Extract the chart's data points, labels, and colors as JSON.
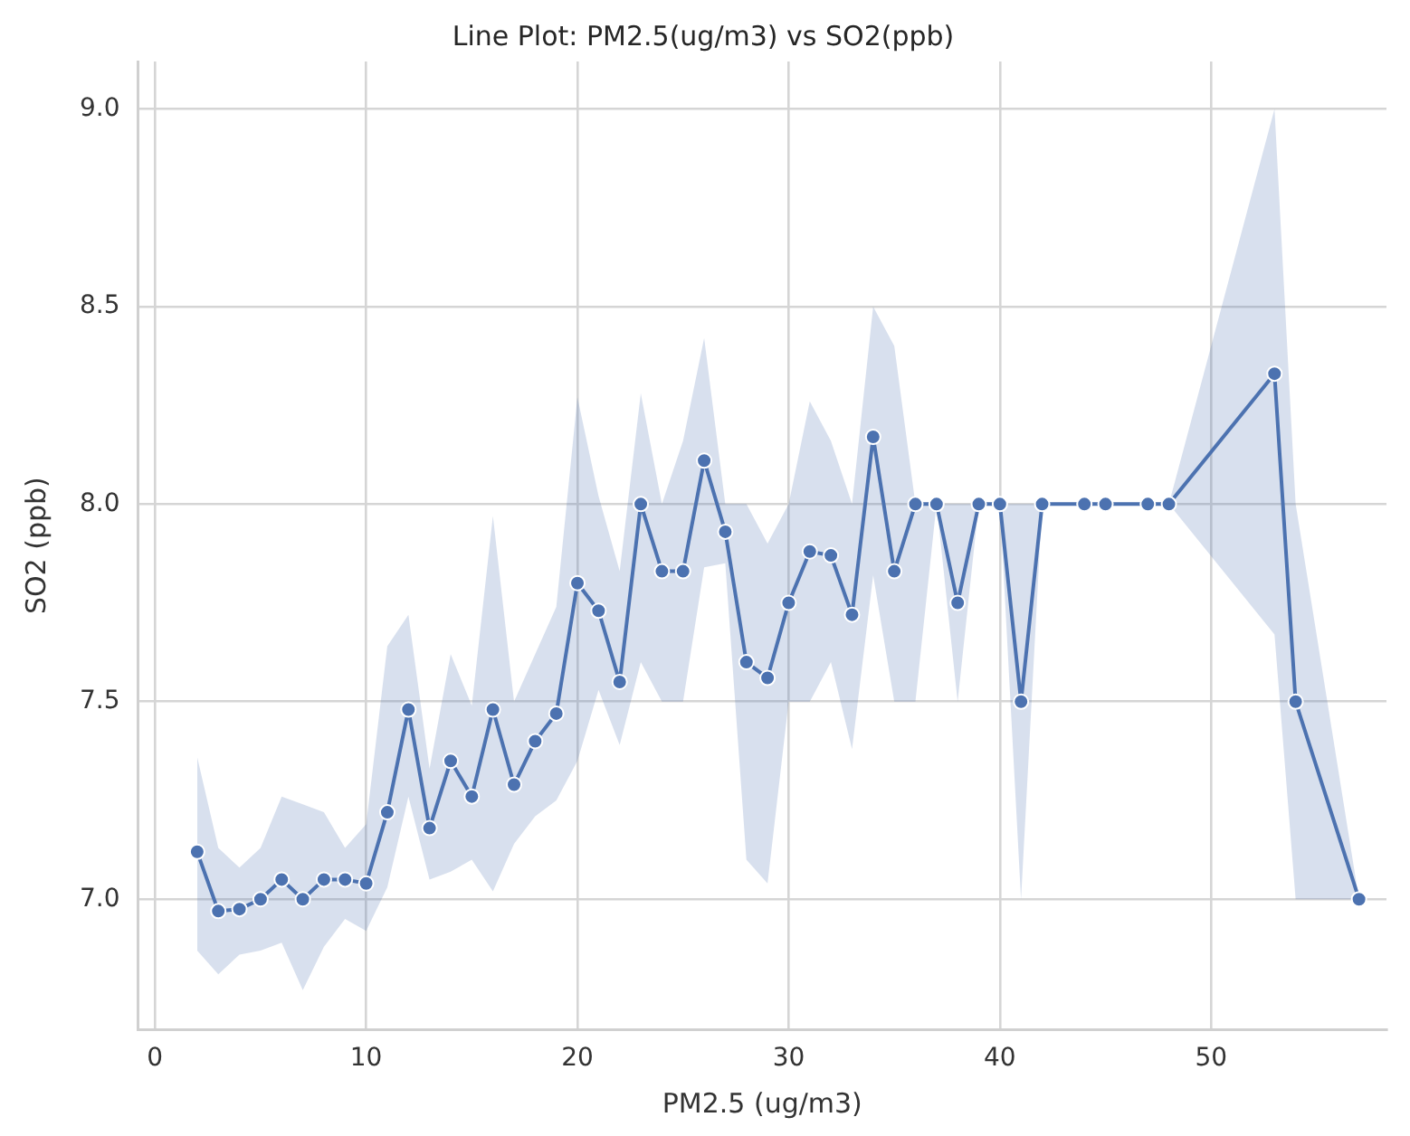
{
  "chart_data": {
    "type": "line",
    "title": "Line Plot: PM2.5(ug/m3) vs SO2(ppb)",
    "xlabel": "PM2.5 (ug/m3)",
    "ylabel": "SO2 (ppb)",
    "x": [
      2,
      3,
      4,
      5,
      6,
      7,
      8,
      9,
      10,
      11,
      12,
      13,
      14,
      15,
      16,
      17,
      18,
      19,
      20,
      21,
      22,
      23,
      24,
      25,
      26,
      27,
      28,
      29,
      30,
      31,
      32,
      33,
      34,
      35,
      36,
      37,
      38,
      39,
      40,
      41,
      42,
      44,
      45,
      47,
      48,
      53,
      54,
      57
    ],
    "series": [
      {
        "color": "#4c72b0",
        "values": [
          7.12,
          6.97,
          6.975,
          7.0,
          7.05,
          7.0,
          7.05,
          7.05,
          7.04,
          7.22,
          7.48,
          7.18,
          7.35,
          7.26,
          7.48,
          7.29,
          7.4,
          7.47,
          7.8,
          7.73,
          7.55,
          8.0,
          7.83,
          7.83,
          8.11,
          7.93,
          7.6,
          7.56,
          7.75,
          7.88,
          7.87,
          7.72,
          8.17,
          7.83,
          8.0,
          8.0,
          7.75,
          8.0,
          8.0,
          7.5,
          8.0,
          8.0,
          8.0,
          8.0,
          8.0,
          8.33,
          7.5,
          7.0
        ],
        "lower": [
          6.87,
          6.81,
          6.86,
          6.87,
          6.89,
          6.77,
          6.88,
          6.95,
          6.92,
          7.03,
          7.26,
          7.05,
          7.07,
          7.1,
          7.02,
          7.14,
          7.21,
          7.25,
          7.35,
          7.53,
          7.39,
          7.6,
          7.5,
          7.5,
          7.84,
          7.85,
          7.1,
          7.04,
          7.5,
          7.5,
          7.6,
          7.38,
          7.82,
          7.5,
          7.5,
          8.0,
          7.5,
          8.0,
          8.0,
          7.0,
          8.0,
          8.0,
          8.0,
          8.0,
          8.0,
          7.67,
          7.0,
          7.0
        ],
        "upper": [
          7.36,
          7.13,
          7.08,
          7.13,
          7.26,
          7.24,
          7.22,
          7.13,
          7.19,
          7.64,
          7.72,
          7.33,
          7.62,
          7.49,
          7.97,
          7.5,
          7.62,
          7.74,
          8.27,
          8.02,
          7.83,
          8.28,
          8.0,
          8.16,
          8.42,
          8.0,
          8.0,
          7.9,
          8.0,
          8.26,
          8.16,
          8.0,
          8.5,
          8.4,
          8.0,
          8.0,
          8.0,
          8.0,
          8.0,
          8.0,
          8.0,
          8.0,
          8.0,
          8.0,
          8.0,
          9.0,
          8.0,
          7.0
        ]
      }
    ],
    "xlim": [
      -0.8,
      58.3
    ],
    "ylim": [
      6.67,
      9.12
    ],
    "xticks": [
      0,
      10,
      20,
      30,
      40,
      50
    ],
    "yticks": [
      {
        "value": 7,
        "label": "7.0"
      },
      7.5,
      {
        "value": 8,
        "label": "8.0"
      },
      8.5,
      {
        "value": 9,
        "label": "9.0"
      }
    ],
    "grid": true,
    "legend": false,
    "marker": "circle",
    "line_style": "solid"
  }
}
